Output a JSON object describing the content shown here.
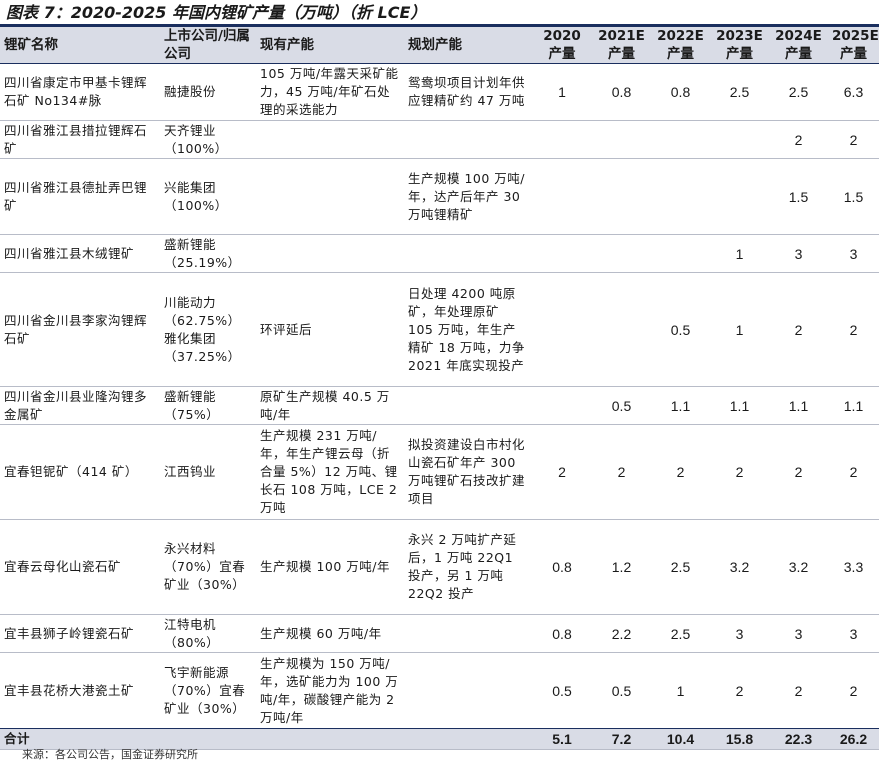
{
  "title": "图表 7：2020-2025 年国内锂矿产量（万吨）（折 LCE）",
  "headers": {
    "mine": "锂矿名称",
    "company": "上市公司/归属公司",
    "capacity": "现有产能",
    "plan": "规划产能",
    "y2020": "2020 产量",
    "y2021": "2021E 产量",
    "y2022": "2022E 产量",
    "y2023": "2023E 产量",
    "y2024": "2024E 产量",
    "y2025": "2025E 产量"
  },
  "rows": [
    {
      "mine": "四川省康定市甲基卡锂辉石矿 No134#脉",
      "company": "融捷股份",
      "capacity": "105 万吨/年露天采矿能力，45 万吨/年矿石处理的采选能力",
      "plan": "鸳鸯坝项目计划年供应锂精矿约 47 万吨",
      "y2020": "1",
      "y2021": "0.8",
      "y2022": "0.8",
      "y2023": "2.5",
      "y2024": "2.5",
      "y2025": "6.3"
    },
    {
      "mine": "四川省雅江县措拉锂辉石矿",
      "company": "天齐锂业（100%）",
      "capacity": "",
      "plan": "",
      "y2020": "",
      "y2021": "",
      "y2022": "",
      "y2023": "",
      "y2024": "2",
      "y2025": "2"
    },
    {
      "mine": "四川省雅江县德扯弄巴锂矿",
      "company": "兴能集团（100%）",
      "capacity": "",
      "plan": "生产规模 100 万吨/年，达产后年产 30 万吨锂精矿",
      "y2020": "",
      "y2021": "",
      "y2022": "",
      "y2023": "",
      "y2024": "1.5",
      "y2025": "1.5"
    },
    {
      "mine": "四川省雅江县木绒锂矿",
      "company": "盛新锂能（25.19%）",
      "capacity": "",
      "plan": "",
      "y2020": "",
      "y2021": "",
      "y2022": "",
      "y2023": "1",
      "y2024": "3",
      "y2025": "3"
    },
    {
      "mine": "四川省金川县李家沟锂辉石矿",
      "company": "川能动力（62.75%）雅化集团（37.25%）",
      "capacity": "环评延后",
      "plan": "日处理 4200 吨原矿，年处理原矿 105 万吨，年生产精矿 18 万吨，力争 2021 年底实现投产",
      "y2020": "",
      "y2021": "",
      "y2022": "0.5",
      "y2023": "1",
      "y2024": "2",
      "y2025": "2"
    },
    {
      "mine": "四川省金川县业隆沟锂多金属矿",
      "company": "盛新锂能（75%）",
      "capacity": "原矿生产规模 40.5 万吨/年",
      "plan": "",
      "y2020": "",
      "y2021": "0.5",
      "y2022": "1.1",
      "y2023": "1.1",
      "y2024": "1.1",
      "y2025": "1.1"
    },
    {
      "mine": "宜春钽铌矿（414 矿）",
      "company": "江西钨业",
      "capacity": "生产规模 231 万吨/年，年生产锂云母（折合量 5%）12 万吨、锂长石 108 万吨，LCE 2 万吨",
      "plan": "拟投资建设白市村化山瓷石矿年产 300 万吨锂矿石技改扩建项目",
      "y2020": "2",
      "y2021": "2",
      "y2022": "2",
      "y2023": "2",
      "y2024": "2",
      "y2025": "2"
    },
    {
      "mine": "宜春云母化山瓷石矿",
      "company": "永兴材料（70%）宜春矿业（30%）",
      "capacity": "生产规模 100 万吨/年",
      "plan": "永兴 2 万吨扩产延后，1 万吨 22Q1 投产，另 1 万吨 22Q2 投产",
      "y2020": "0.8",
      "y2021": "1.2",
      "y2022": "2.5",
      "y2023": "3.2",
      "y2024": "3.2",
      "y2025": "3.3"
    },
    {
      "mine": "宜丰县狮子岭锂瓷石矿",
      "company": "江特电机（80%）",
      "capacity": "生产规模 60 万吨/年",
      "plan": "",
      "y2020": "0.8",
      "y2021": "2.2",
      "y2022": "2.5",
      "y2023": "3",
      "y2024": "3",
      "y2025": "3"
    },
    {
      "mine": "宜丰县花桥大港瓷土矿",
      "company": "飞宇新能源（70%）宜春矿业（30%）",
      "capacity": "生产规模为 150 万吨/年，选矿能力为 100 万吨/年，碳酸锂产能为 2 万吨/年",
      "plan": "",
      "y2020": "0.5",
      "y2021": "0.5",
      "y2022": "1",
      "y2023": "2",
      "y2024": "2",
      "y2025": "2"
    }
  ],
  "total": {
    "label": "合计",
    "y2020": "5.1",
    "y2021": "7.2",
    "y2022": "10.4",
    "y2023": "15.8",
    "y2024": "22.3",
    "y2025": "26.2"
  },
  "source": "来源：各公司公告，国金证券研究所"
}
